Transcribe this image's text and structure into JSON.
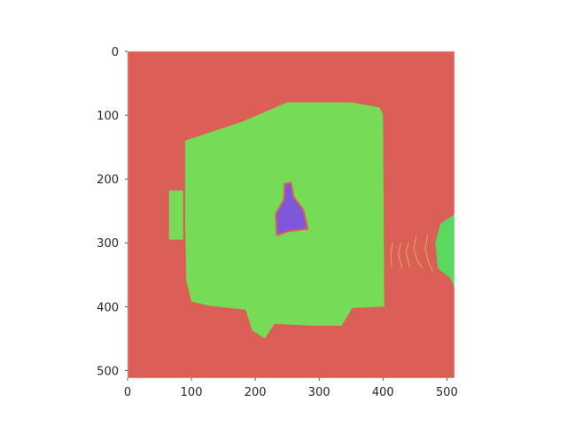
{
  "figure": {
    "x_ticks": [
      "0",
      "100",
      "200",
      "300",
      "400",
      "500"
    ],
    "y_ticks": [
      "0",
      "100",
      "200",
      "300",
      "400",
      "500"
    ],
    "x_tick_values": [
      0,
      100,
      200,
      300,
      400,
      500
    ],
    "y_tick_values": [
      0,
      100,
      200,
      300,
      400,
      500
    ],
    "x_range": [
      0,
      512
    ],
    "y_range": [
      0,
      512
    ],
    "y_inverted": true,
    "grid": false
  },
  "segmentation": {
    "image_size": [
      512,
      512
    ],
    "colors": {
      "background": "#db5f57",
      "object_main": "#76db57",
      "object_side": "#5ad85f",
      "inner_region": "#7f57db",
      "outline": "#db5f57",
      "thin_lines": "#d8b05a"
    },
    "regions": [
      {
        "label": "background",
        "color_key": "background",
        "points": [
          [
            0,
            0
          ],
          [
            512,
            0
          ],
          [
            512,
            512
          ],
          [
            0,
            512
          ]
        ]
      },
      {
        "label": "main-object",
        "color_key": "object_main",
        "points": [
          [
            90,
            140
          ],
          [
            180,
            110
          ],
          [
            250,
            80
          ],
          [
            350,
            80
          ],
          [
            395,
            88
          ],
          [
            400,
            100
          ],
          [
            402,
            400
          ],
          [
            352,
            402
          ],
          [
            335,
            430
          ],
          [
            290,
            430
          ],
          [
            230,
            427
          ],
          [
            215,
            450
          ],
          [
            195,
            437
          ],
          [
            185,
            405
          ],
          [
            140,
            400
          ],
          [
            125,
            398
          ],
          [
            100,
            392
          ],
          [
            92,
            360
          ],
          [
            90,
            260
          ]
        ]
      },
      {
        "label": "main-object-tab",
        "color_key": "object_main",
        "points": [
          [
            65,
            218
          ],
          [
            87,
            218
          ],
          [
            87,
            295
          ],
          [
            65,
            295
          ]
        ]
      },
      {
        "label": "right-edge-object",
        "color_key": "object_side",
        "points": [
          [
            512,
            255
          ],
          [
            490,
            270
          ],
          [
            482,
            300
          ],
          [
            486,
            340
          ],
          [
            505,
            355
          ],
          [
            512,
            370
          ]
        ]
      },
      {
        "label": "inner-region",
        "color_key": "inner_region",
        "points": [
          [
            246,
            208
          ],
          [
            256,
            206
          ],
          [
            260,
            228
          ],
          [
            275,
            248
          ],
          [
            282,
            278
          ],
          [
            252,
            282
          ],
          [
            234,
            288
          ],
          [
            232,
            255
          ],
          [
            245,
            232
          ]
        ]
      }
    ],
    "thin_lines": [
      [
        [
          415,
          300
        ],
        [
          412,
          320
        ],
        [
          414,
          338
        ]
      ],
      [
        [
          428,
          300
        ],
        [
          424,
          318
        ],
        [
          430,
          340
        ]
      ],
      [
        [
          440,
          300
        ],
        [
          436,
          315
        ],
        [
          442,
          338
        ]
      ],
      [
        [
          452,
          290
        ],
        [
          448,
          310
        ],
        [
          455,
          330
        ],
        [
          462,
          340
        ]
      ],
      [
        [
          470,
          288
        ],
        [
          466,
          310
        ],
        [
          472,
          332
        ],
        [
          478,
          345
        ]
      ]
    ]
  }
}
